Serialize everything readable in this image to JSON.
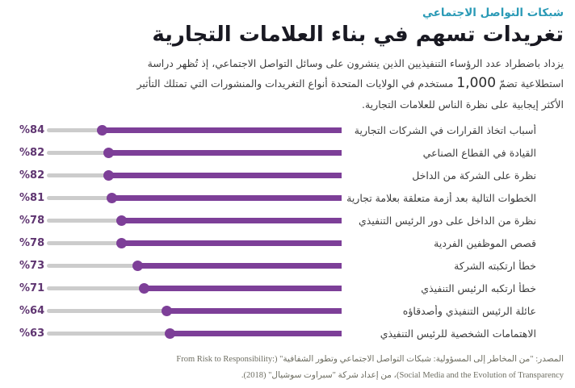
{
  "page": {
    "kicker": "شبكات التواصل الاجتماعي",
    "title": "تغريدات تسهم في بناء العلامات التجارية",
    "intro_before_number": "يزداد باضطراد عدد الرؤساء التنفيذيين الذين ينشرون على وسائل التواصل الاجتماعي، إذ تُظهر دراسة استطلاعية تضمّ ",
    "intro_number": "1,000",
    "intro_after_number": " مستخدم في الولايات المتحدة أنواع التغريدات والمنشورات التي تمتلك التأثير الأكثر إيجابية على نظرة الناس للعلامات التجارية.",
    "source_text": "المصدر: \"من المخاطر إلى المسؤولية: شبكات التواصل الاجتماعي وتطور الشفافية\" (From Risk to Responsibility: Social Media and the Evolution of Transparency)، من إعداد شركة \"سبراوت سوشيال\" (2018)."
  },
  "colors": {
    "kicker": "#2a9ab6",
    "title": "#191922",
    "body": "#3d3d3d",
    "bar": "#7d3f98",
    "track": "#cccccc",
    "percent_label": "#5f3571",
    "source": "#6e6e62"
  },
  "chart_data": {
    "type": "bar",
    "orientation": "horizontal-rtl-lollipop",
    "title": "تغريدات تسهم في بناء العلامات التجارية",
    "categories": [
      "أسباب اتخاذ القرارات في الشركات التجارية",
      "القيادة في القطاع الصناعي",
      "نظرة على الشركة من الداخل",
      "الخطوات التالية بعد أزمة متعلقة بعلامة تجارية",
      "نظرة من الداخل على دور الرئيس التنفيذي",
      "قصص الموظفين الفردية",
      "خطأ ارتكبته الشركة",
      "خطأ ارتكبه الرئيس التنفيذي",
      "عائلة الرئيس التنفيذي وأصدقاؤه",
      "الاهتمامات الشخصية للرئيس التنفيذي"
    ],
    "values": [
      84,
      82,
      82,
      81,
      78,
      78,
      73,
      71,
      64,
      63
    ],
    "value_labels": [
      "%84",
      "%82",
      "%82",
      "%81",
      "%78",
      "%78",
      "%73",
      "%71",
      "%64",
      "%63"
    ],
    "unit": "%",
    "xlim": [
      0,
      100
    ],
    "grid": false,
    "legend": false
  }
}
